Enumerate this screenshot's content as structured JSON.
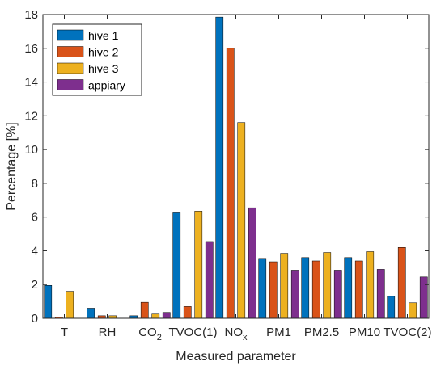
{
  "chart_data": {
    "type": "bar",
    "title": "",
    "xlabel": "Measured parameter",
    "ylabel": "Percentage [%]",
    "ylim": [
      0,
      18
    ],
    "yticks": [
      0,
      2,
      4,
      6,
      8,
      10,
      12,
      14,
      16,
      18
    ],
    "grid": false,
    "legend_position": "top-left",
    "categories": [
      {
        "label": "T"
      },
      {
        "label": "RH"
      },
      {
        "label": "CO",
        "sub": "2"
      },
      {
        "label": "TVOC(1)"
      },
      {
        "label": "NO",
        "sub": "x"
      },
      {
        "label": "PM1"
      },
      {
        "label": "PM2.5"
      },
      {
        "label": "PM10"
      },
      {
        "label": "TVOC(2)"
      }
    ],
    "series": [
      {
        "name": "hive 1",
        "color": "#0072BD",
        "values": [
          1.95,
          0.6,
          0.15,
          6.25,
          17.85,
          3.55,
          3.6,
          3.6,
          1.3
        ]
      },
      {
        "name": "hive 2",
        "color": "#D95319",
        "values": [
          0.08,
          0.15,
          0.95,
          0.7,
          16.0,
          3.35,
          3.4,
          3.4,
          4.2
        ]
      },
      {
        "name": "hive 3",
        "color": "#EDB120",
        "values": [
          1.6,
          0.15,
          0.25,
          6.35,
          11.6,
          3.85,
          3.9,
          3.95,
          0.92
        ]
      },
      {
        "name": "appiary",
        "color": "#7E2F8E",
        "values": [
          0.0,
          0.0,
          0.35,
          4.55,
          6.55,
          2.85,
          2.85,
          2.9,
          2.45
        ]
      }
    ]
  }
}
